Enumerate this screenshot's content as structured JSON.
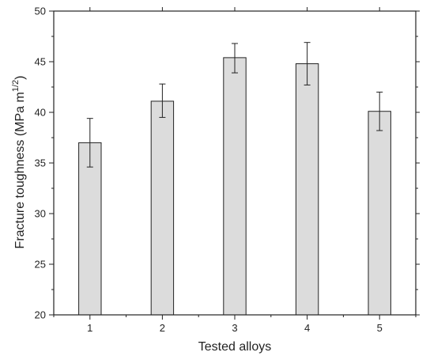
{
  "chart_data": {
    "type": "bar",
    "categories": [
      "1",
      "2",
      "3",
      "4",
      "5"
    ],
    "values": [
      37.0,
      41.1,
      45.4,
      44.8,
      40.1
    ],
    "error_upper": [
      39.4,
      42.8,
      46.8,
      46.9,
      42.0
    ],
    "error_lower": [
      34.6,
      39.5,
      43.9,
      42.7,
      38.2
    ],
    "xlabel": "Tested alloys",
    "ylabel_main": "Fracture toughness (MPa m",
    "ylabel_sup": "1/2",
    "ylabel_end": ")",
    "ylim": [
      20,
      50
    ],
    "yticks": [
      20,
      25,
      30,
      35,
      40,
      45,
      50
    ],
    "grid": false,
    "bar_color": "#dcdcdc",
    "edge_color": "#222222"
  }
}
